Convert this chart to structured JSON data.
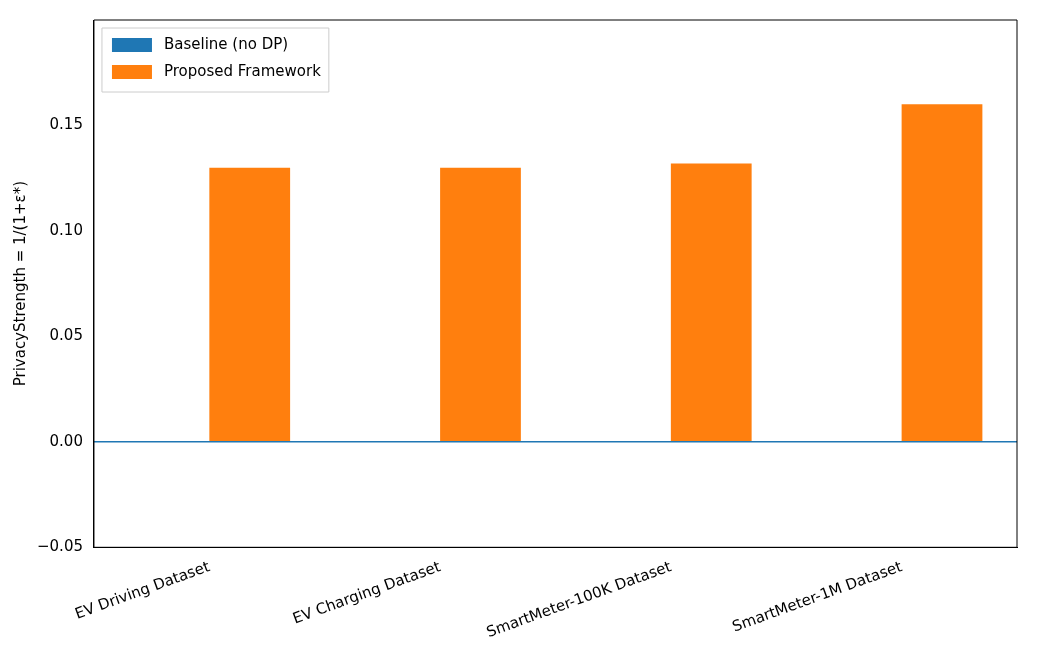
{
  "chart_data": {
    "type": "bar",
    "ylabel": "PrivacyStrength = 1/(1+ε*)",
    "categories": [
      "EV Driving Dataset",
      "EV Charging Dataset",
      "SmartMeter-100K Dataset",
      "SmartMeter-1M Dataset"
    ],
    "series": [
      {
        "name": "Baseline (no DP)",
        "color": "#1f77b4",
        "values": [
          0,
          0,
          0,
          0
        ]
      },
      {
        "name": "Proposed Framework",
        "color": "#ff7f0e",
        "values": [
          0.13,
          0.13,
          0.132,
          0.16
        ]
      }
    ],
    "ylim": [
      -0.05,
      0.2
    ],
    "yticks": [
      {
        "value": -0.05,
        "label": "−0.05"
      },
      {
        "value": 0,
        "label": "0.00"
      },
      {
        "value": 0.05,
        "label": "0.05"
      },
      {
        "value": 0.1,
        "label": "0.10"
      },
      {
        "value": 0.15,
        "label": "0.15"
      }
    ],
    "ref_lines": [
      {
        "axis": "y",
        "value": 0,
        "color": "#1f77b4"
      }
    ],
    "grid": false,
    "legend": "top left"
  }
}
